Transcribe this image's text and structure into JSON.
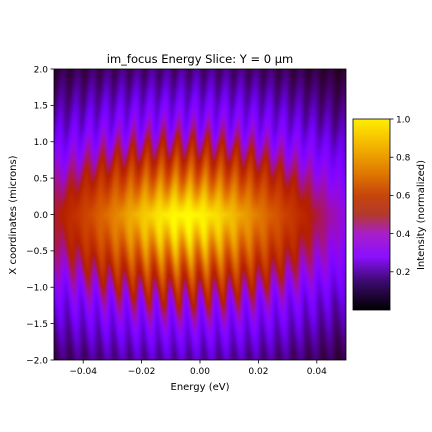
{
  "chart_data": {
    "type": "heatmap",
    "title": "im_focus Energy Slice: Y = 0 µm",
    "xlabel": "Energy (eV)",
    "ylabel": "X coordinates (microns)",
    "xlim": [
      -0.05,
      0.05
    ],
    "ylim": [
      -2.0,
      2.0
    ],
    "x_ticks": [
      -0.04,
      -0.02,
      0.0,
      0.02,
      0.04
    ],
    "x_tick_labels": [
      "−0.04",
      "−0.02",
      "0.00",
      "0.02",
      "0.04"
    ],
    "y_ticks": [
      -2.0,
      -1.5,
      -1.0,
      -0.5,
      0.0,
      0.5,
      1.0,
      1.5,
      2.0
    ],
    "y_tick_labels": [
      "−2.0",
      "−1.5",
      "−1.0",
      "−0.5",
      "0.0",
      "0.5",
      "1.0",
      "1.5",
      "2.0"
    ],
    "colormap": "gnuplot",
    "colorbar": {
      "label": "Intensity (normalized)",
      "range": [
        0.0,
        1.0
      ],
      "ticks": [
        0.2,
        0.4,
        0.6,
        0.8,
        1.0
      ],
      "tick_labels": [
        "0.2",
        "0.4",
        "0.6",
        "0.8",
        "1.0"
      ]
    },
    "pattern": {
      "description": "Gaussian focal spot with periodic fringes along energy",
      "center_energy_eV": -0.005,
      "center_x_um": -0.1,
      "energy_width_eV": 0.045,
      "x_width_um": 1.3,
      "fringe_period_eV": 0.0051,
      "fringe_count": 19
    },
    "grid": false
  }
}
